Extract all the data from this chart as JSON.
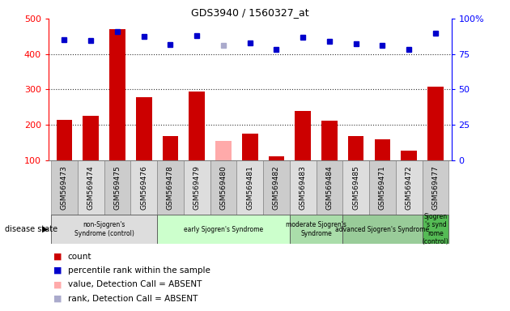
{
  "title": "GDS3940 / 1560327_at",
  "samples": [
    "GSM569473",
    "GSM569474",
    "GSM569475",
    "GSM569476",
    "GSM569478",
    "GSM569479",
    "GSM569480",
    "GSM569481",
    "GSM569482",
    "GSM569483",
    "GSM569484",
    "GSM569485",
    "GSM569471",
    "GSM569472",
    "GSM569477"
  ],
  "bar_values": [
    215,
    225,
    470,
    278,
    168,
    295,
    155,
    175,
    110,
    240,
    212,
    168,
    158,
    128,
    308
  ],
  "bar_absent": [
    false,
    false,
    false,
    false,
    false,
    false,
    true,
    false,
    false,
    false,
    false,
    false,
    false,
    false,
    false
  ],
  "rank_values": [
    440,
    438,
    463,
    450,
    427,
    452,
    425,
    432,
    413,
    447,
    435,
    428,
    425,
    412,
    458
  ],
  "rank_absent": [
    false,
    false,
    false,
    false,
    false,
    false,
    true,
    false,
    false,
    false,
    false,
    false,
    false,
    false,
    false
  ],
  "bar_color_normal": "#cc0000",
  "bar_color_absent": "#ffaaaa",
  "rank_color_normal": "#0000cc",
  "rank_color_absent": "#aaaacc",
  "ylim_left": [
    100,
    500
  ],
  "yticks_left": [
    100,
    200,
    300,
    400,
    500
  ],
  "ytick_labels_right": [
    "0",
    "25",
    "50",
    "75",
    "100%"
  ],
  "groups": [
    {
      "label": "non-Sjogren's\nSyndrome (control)",
      "start": 0,
      "end": 4,
      "color": "#dddddd"
    },
    {
      "label": "early Sjogren's Syndrome",
      "start": 4,
      "end": 9,
      "color": "#ccffcc"
    },
    {
      "label": "moderate Sjogren's\nSyndrome",
      "start": 9,
      "end": 11,
      "color": "#aaddaa"
    },
    {
      "label": "advanced Sjogren's Syndrome",
      "start": 11,
      "end": 14,
      "color": "#99cc99"
    },
    {
      "label": "Sjogren\n's synd\nrome\n(control)",
      "start": 14,
      "end": 15,
      "color": "#55bb55"
    }
  ],
  "disease_state_label": "disease state",
  "legend_items": [
    {
      "label": "count",
      "color": "#cc0000"
    },
    {
      "label": "percentile rank within the sample",
      "color": "#0000cc"
    },
    {
      "label": "value, Detection Call = ABSENT",
      "color": "#ffaaaa"
    },
    {
      "label": "rank, Detection Call = ABSENT",
      "color": "#aaaacc"
    }
  ],
  "bg_color": "#ffffff",
  "grid_color": "#333333"
}
